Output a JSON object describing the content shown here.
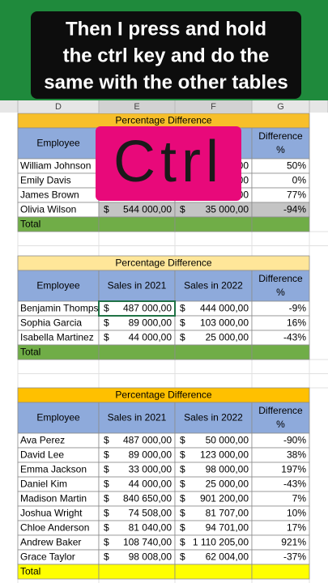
{
  "caption": {
    "lines": [
      "Then I press and hold",
      "the ctrl key and do the",
      "same with the other tables"
    ]
  },
  "column_headers": [
    "D",
    "E",
    "F",
    "G"
  ],
  "key_overlay": "Ctrl",
  "tables": [
    {
      "title": "Percentage Difference",
      "title_fill": "#f7bf2a",
      "total_fill": "#70ad47",
      "currency": "$",
      "headers": [
        "Employee",
        null,
        null,
        [
          "Difference",
          "%"
        ]
      ],
      "shaded_rows": [
        3
      ],
      "rows": [
        {
          "name": "William Johnson",
          "sales_2021": null,
          "sales_2022": "00",
          "difference": "50%"
        },
        {
          "name": "Emily Davis",
          "sales_2021": null,
          "sales_2022": "00",
          "difference": "0%"
        },
        {
          "name": "James Brown",
          "sales_2021": null,
          "sales_2022": "00",
          "difference": "77%"
        },
        {
          "name": "Olivia Wilson",
          "sales_2021": "544 000,00",
          "sales_2022": "35 000,00",
          "difference": "-94%"
        }
      ],
      "total": "Total"
    },
    {
      "title": "Percentage Difference",
      "title_fill": "#ffe699",
      "total_fill": "#70ad47",
      "currency": "$",
      "headers": [
        "Employee",
        "Sales in 2021",
        "Sales in 2022",
        [
          "Difference",
          "%"
        ]
      ],
      "shaded_rows": [],
      "rows": [
        {
          "name": "Benjamin Thomps",
          "sales_2021": "487 000,00",
          "sales_2022": "444 000,00",
          "difference": "-9%"
        },
        {
          "name": "Sophia Garcia",
          "sales_2021": "89 000,00",
          "sales_2022": "103 000,00",
          "difference": "16%"
        },
        {
          "name": "Isabella Martinez",
          "sales_2021": "44 000,00",
          "sales_2022": "25 000,00",
          "difference": "-43%"
        }
      ],
      "total": "Total"
    },
    {
      "title": "Percentage Difference",
      "title_fill": "#ffc000",
      "total_fill": "#ffff00",
      "currency": "$",
      "headers": [
        "Employee",
        "Sales in 2021",
        "Sales in 2022",
        [
          "Difference",
          "%"
        ]
      ],
      "shaded_rows": [],
      "rows": [
        {
          "name": "Ava Perez",
          "sales_2021": "487 000,00",
          "sales_2022": "50 000,00",
          "difference": "-90%"
        },
        {
          "name": "David Lee",
          "sales_2021": "89 000,00",
          "sales_2022": "123 000,00",
          "difference": "38%"
        },
        {
          "name": "Emma Jackson",
          "sales_2021": "33 000,00",
          "sales_2022": "98 000,00",
          "difference": "197%"
        },
        {
          "name": "Daniel Kim",
          "sales_2021": "44 000,00",
          "sales_2022": "25 000,00",
          "difference": "-43%"
        },
        {
          "name": "Madison Martin",
          "sales_2021": "840 650,00",
          "sales_2022": "901 200,00",
          "difference": "7%"
        },
        {
          "name": "Joshua Wright",
          "sales_2021": "74 508,00",
          "sales_2022": "81 707,00",
          "difference": "10%"
        },
        {
          "name": "Chloe Anderson",
          "sales_2021": "81 040,00",
          "sales_2022": "94 701,00",
          "difference": "17%"
        },
        {
          "name": "Andrew Baker",
          "sales_2021": "108 740,00",
          "sales_2022": "1 110 205,00",
          "difference": "921%"
        },
        {
          "name": "Grace Taylor",
          "sales_2021": "98 008,00",
          "sales_2022": "62 004,00",
          "difference": "-37%"
        }
      ],
      "total": "Total"
    }
  ]
}
